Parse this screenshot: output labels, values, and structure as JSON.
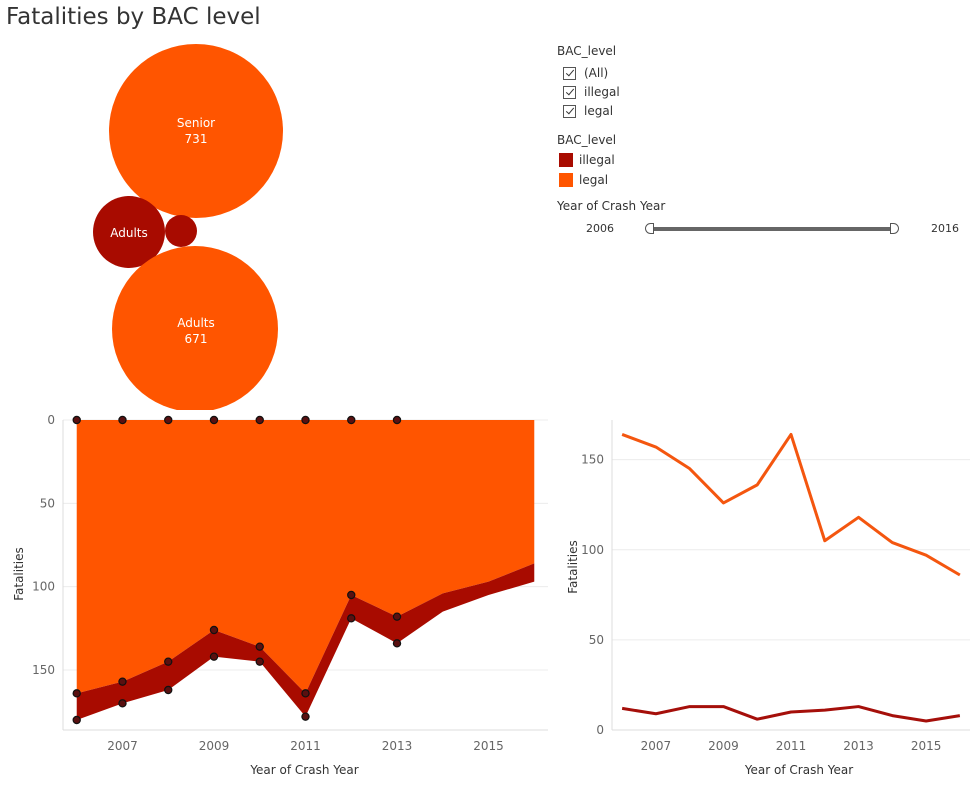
{
  "title": "Fatalities by BAC level",
  "filter": {
    "title": "BAC_level",
    "options": [
      {
        "label": "(All)",
        "checked": true
      },
      {
        "label": "illegal",
        "checked": true
      },
      {
        "label": "legal",
        "checked": true
      }
    ]
  },
  "legend": {
    "title": "BAC_level",
    "items": [
      {
        "label": "illegal",
        "color": "#a80b00"
      },
      {
        "label": "legal",
        "color": "#ff5500"
      }
    ]
  },
  "slider": {
    "title": "Year of Crash Year",
    "min_label": "2006",
    "max_label": "2016"
  },
  "colors": {
    "illegal": "#a80b00",
    "legal": "#ff5500",
    "line_legal": "#f4560f",
    "line_illegal": "#a50f0a"
  },
  "chart_data": [
    {
      "type": "bubble",
      "bubbles": [
        {
          "group": "Senior",
          "bac": "legal",
          "value": 731,
          "label": "Senior",
          "value_label": "731"
        },
        {
          "group": "Adults",
          "bac": "illegal",
          "label": "Adults"
        },
        {
          "group": "Senior",
          "bac": "illegal"
        },
        {
          "group": "Adults",
          "bac": "legal",
          "value": 671,
          "label": "Adults",
          "value_label": "671"
        }
      ]
    },
    {
      "type": "area",
      "stacked": true,
      "y_reversed": true,
      "xlabel": "Year of Crash Year",
      "ylabel": "Fatalities",
      "xlim": [
        2005.7,
        2016.3
      ],
      "ylim": [
        0,
        186
      ],
      "x_ticks": [
        2007,
        2009,
        2011,
        2013,
        2015
      ],
      "y_ticks": [
        0,
        50,
        100,
        150
      ],
      "x": [
        2006,
        2007,
        2008,
        2009,
        2010,
        2011,
        2012,
        2013,
        2014,
        2015,
        2016
      ],
      "series": [
        {
          "name": "legal",
          "values": [
            164,
            157,
            145,
            126,
            136,
            164,
            105,
            118,
            104,
            97,
            86
          ]
        },
        {
          "name": "illegal",
          "values": [
            16,
            13,
            17,
            16,
            9,
            14,
            14,
            16,
            11,
            8,
            11
          ]
        }
      ],
      "markers_x": [
        2006,
        2007,
        2008,
        2009,
        2010,
        2011,
        2012,
        2013
      ]
    },
    {
      "type": "line",
      "xlabel": "Year of Crash Year",
      "ylabel": "Fatalities",
      "xlim": [
        2005.7,
        2016.3
      ],
      "ylim": [
        0,
        172
      ],
      "x_ticks": [
        2007,
        2009,
        2011,
        2013,
        2015
      ],
      "y_ticks": [
        0,
        50,
        100,
        150
      ],
      "x": [
        2006,
        2007,
        2008,
        2009,
        2010,
        2011,
        2012,
        2013,
        2014,
        2015,
        2016
      ],
      "series": [
        {
          "name": "legal",
          "values": [
            164,
            157,
            145,
            126,
            136,
            164,
            105,
            118,
            104,
            97,
            86
          ]
        },
        {
          "name": "illegal",
          "values": [
            12,
            9,
            13,
            13,
            6,
            10,
            11,
            13,
            8,
            5,
            8
          ]
        }
      ]
    }
  ]
}
